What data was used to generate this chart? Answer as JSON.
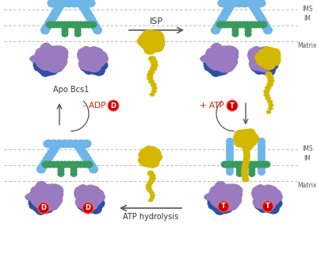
{
  "bg_color": "#ffffff",
  "colors": {
    "blue_arch": "#6eb5e8",
    "green": "#3a9a5c",
    "purple": "#9b7bbf",
    "dark_blue": "#2e4fa3",
    "yellow": "#d4b800",
    "red": "#cc0000",
    "arrow": "#555555",
    "dashed_line": "#b0b0b0",
    "text_dark": "#333333",
    "text_red": "#cc2200"
  },
  "labels": {
    "IMS": "IMS",
    "IM": "IM",
    "Matrix": "Matrix",
    "ISP": "ISP",
    "minus_ADP": "- ADP",
    "plus_ATP": "+ ATP",
    "ATP_hydrolysis": "ATP hydrolysis",
    "Apo_Bcs1": "Apo Bcs1",
    "D": "D",
    "T": "T"
  }
}
